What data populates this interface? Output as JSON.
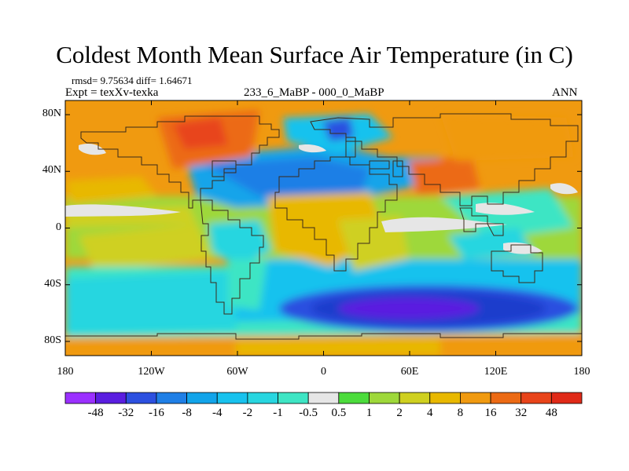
{
  "header": {
    "title": "Coldest Month Mean Surface Air Temperature (in C)",
    "stats": "rmsd= 9.75634 diff= 1.64671",
    "experiment": "Expt = texXv-texka",
    "comparison": "233_6_MaBP - 000_0_MaBP",
    "season": "ANN"
  },
  "map": {
    "projection": "cylindrical equidistant",
    "lon_range": [
      -180,
      180
    ],
    "lat_range": [
      -90,
      90
    ],
    "y_axis_labels": [
      "80N",
      "40N",
      "0",
      "40S",
      "80S"
    ],
    "x_axis_labels": [
      "180",
      "120W",
      "60W",
      "0",
      "60E",
      "120E",
      "180"
    ]
  },
  "colorbar": {
    "labels": [
      "-48",
      "-32",
      "-16",
      "-8",
      "-4",
      "-2",
      "-1",
      "-0.5",
      "0.5",
      "1",
      "2",
      "4",
      "8",
      "16",
      "32",
      "48"
    ],
    "colors": [
      "#9b30ff",
      "#5a1ee0",
      "#2c50e0",
      "#1f7fe6",
      "#12a4ea",
      "#18c2ee",
      "#28d6e0",
      "#3ee5c4",
      "#e6e6e6",
      "#4cdc3c",
      "#9ed83a",
      "#cfd020",
      "#e8b800",
      "#f09a10",
      "#ec6a14",
      "#e8441a",
      "#e02a18"
    ]
  },
  "colors": {
    "background": "#ffffff",
    "text": "#000000",
    "coastline": "#3a2a1a"
  }
}
